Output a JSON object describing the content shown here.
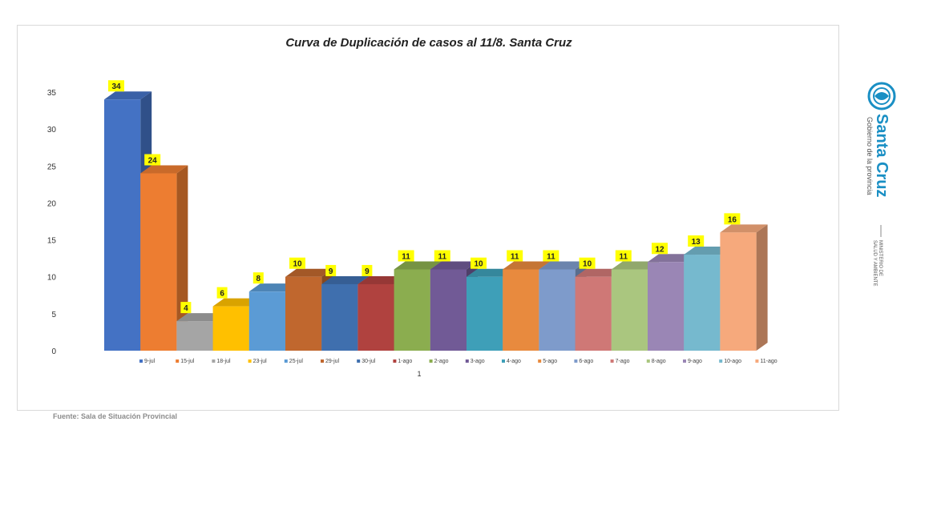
{
  "chart_data": {
    "type": "bar",
    "title": "Curva de Duplicación de casos al 11/8. Santa Cruz",
    "x_category_label": "1",
    "ylim": [
      0,
      35
    ],
    "yticks": [
      "0",
      "5",
      "10",
      "15",
      "20",
      "25",
      "30",
      "35"
    ],
    "grid": false,
    "legend_position": "bottom",
    "series": [
      {
        "name": "9-jul",
        "value": 34,
        "color": "#4472C4"
      },
      {
        "name": "15-jul",
        "value": 24,
        "color": "#ED7D31"
      },
      {
        "name": "18-jul",
        "value": 4,
        "color": "#A5A5A5"
      },
      {
        "name": "23-jul",
        "value": 6,
        "color": "#FFC000"
      },
      {
        "name": "25-jul",
        "value": 8,
        "color": "#5B9BD5"
      },
      {
        "name": "29-jul",
        "value": 10,
        "color": "#C0672E"
      },
      {
        "name": "30-jul",
        "value": 9,
        "color": "#3F6FAE"
      },
      {
        "name": "1-ago",
        "value": 9,
        "color": "#B0423F"
      },
      {
        "name": "2-ago",
        "value": 11,
        "color": "#8BAD4F"
      },
      {
        "name": "3-ago",
        "value": 11,
        "color": "#715A96"
      },
      {
        "name": "4-ago",
        "value": 10,
        "color": "#3E9FB8"
      },
      {
        "name": "5-ago",
        "value": 11,
        "color": "#E88A3E"
      },
      {
        "name": "6-ago",
        "value": 11,
        "color": "#7E9BCB"
      },
      {
        "name": "7-ago",
        "value": 10,
        "color": "#CF7876"
      },
      {
        "name": "8-ago",
        "value": 11,
        "color": "#AAC67F"
      },
      {
        "name": "9-ago",
        "value": 12,
        "color": "#9A86B5"
      },
      {
        "name": "10-ago",
        "value": 13,
        "color": "#76B9CE"
      },
      {
        "name": "11-ago",
        "value": 16,
        "color": "#F6A97C"
      }
    ],
    "data_label_background": "#FFFF00"
  },
  "source": "Fuente: Sala de Situación Provincial",
  "logo": {
    "name": "Santa Cruz",
    "subtitle": "Gobierno de la provincia",
    "ministry_line1": "MINISTERIO DE",
    "ministry_line2": "SALUD Y AMBIENTE",
    "color": "#1a8fc4",
    "icon": "provincial-seal-icon"
  }
}
